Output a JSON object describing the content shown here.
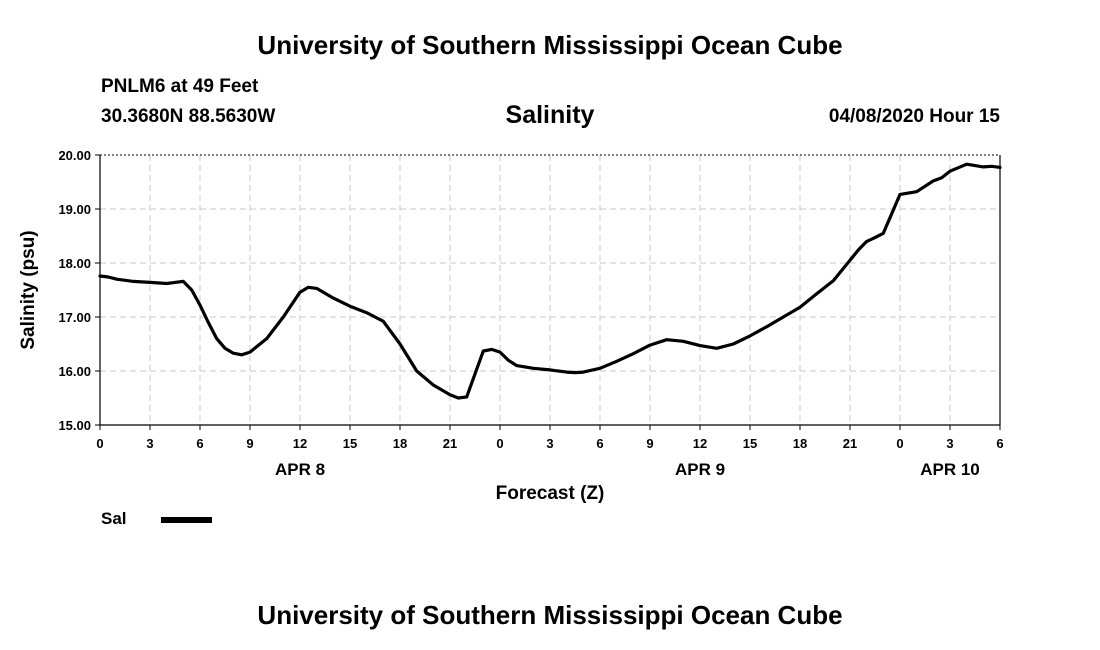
{
  "header": {
    "title": "University of Southern Mississippi Ocean Cube",
    "station": "PNLM6 at 49 Feet",
    "coords": "30.3680N 88.5630W",
    "chart_title": "Salinity",
    "datetime": "04/08/2020 Hour 15"
  },
  "footer": {
    "title": "University of Southern Mississippi Ocean Cube"
  },
  "legend": {
    "label": "Sal"
  },
  "colors": {
    "line": "#000000",
    "grid": "#c8c8c8",
    "background": "#ffffff"
  },
  "chart_data": {
    "type": "line",
    "title": "Salinity",
    "xlabel": "Forecast (Z)",
    "ylabel": "Salinity (psu)",
    "xlim": [
      0,
      54
    ],
    "ylim": [
      15.0,
      20.0
    ],
    "grid": true,
    "legend_position": "bottom-left",
    "x_unit": "forecast hour",
    "x_ticks": [
      0,
      3,
      6,
      9,
      12,
      15,
      18,
      21,
      24,
      27,
      30,
      33,
      36,
      39,
      42,
      45,
      48,
      51,
      54
    ],
    "x_tick_labels": [
      "0",
      "3",
      "6",
      "9",
      "12",
      "15",
      "18",
      "21",
      "0",
      "3",
      "6",
      "9",
      "12",
      "15",
      "18",
      "21",
      "0",
      "3",
      "6"
    ],
    "day_labels": [
      {
        "label": "APR 8",
        "x": 12
      },
      {
        "label": "APR 9",
        "x": 36
      },
      {
        "label": "APR 10",
        "x": 51
      }
    ],
    "y_ticks": [
      15.0,
      16.0,
      17.0,
      18.0,
      19.0,
      20.0
    ],
    "y_tick_labels": [
      "15.00",
      "16.00",
      "17.00",
      "18.00",
      "19.00",
      "20.00"
    ],
    "series": [
      {
        "name": "Sal",
        "x": [
          0,
          0.5,
          1,
          2,
          3,
          4,
          4.5,
          5,
          5.5,
          6,
          6.5,
          7,
          7.5,
          8,
          8.5,
          9,
          10,
          11,
          12,
          12.5,
          13,
          14,
          15,
          16,
          17,
          18,
          19,
          20,
          21,
          21.5,
          22,
          23,
          23.5,
          24,
          24.5,
          25,
          26,
          27,
          28,
          28.5,
          29,
          30,
          31,
          32,
          33,
          34,
          35,
          36,
          37,
          38,
          39,
          40,
          41,
          42,
          43,
          44,
          45,
          45.5,
          46,
          46.5,
          47,
          48,
          49,
          50,
          50.5,
          51,
          52,
          53,
          53.5,
          54
        ],
        "y": [
          17.76,
          17.74,
          17.7,
          17.66,
          17.64,
          17.62,
          17.64,
          17.66,
          17.5,
          17.22,
          16.9,
          16.6,
          16.42,
          16.33,
          16.3,
          16.35,
          16.6,
          17.0,
          17.46,
          17.55,
          17.53,
          17.35,
          17.2,
          17.08,
          16.92,
          16.5,
          16.0,
          15.74,
          15.56,
          15.5,
          15.52,
          16.37,
          16.4,
          16.35,
          16.2,
          16.1,
          16.05,
          16.02,
          15.98,
          15.97,
          15.98,
          16.05,
          16.18,
          16.32,
          16.48,
          16.58,
          16.55,
          16.47,
          16.42,
          16.5,
          16.65,
          16.82,
          17.0,
          17.18,
          17.43,
          17.67,
          18.05,
          18.24,
          18.4,
          18.47,
          18.55,
          19.27,
          19.32,
          19.52,
          19.58,
          19.7,
          19.83,
          19.78,
          19.79,
          19.77
        ]
      }
    ]
  }
}
